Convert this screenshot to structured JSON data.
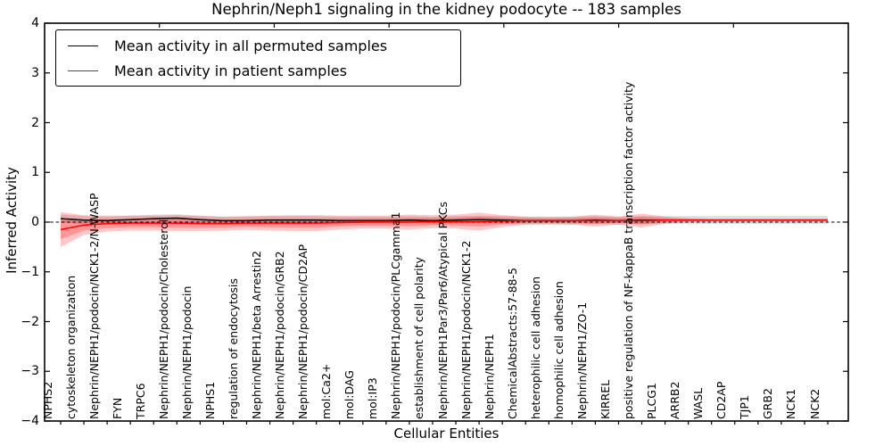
{
  "title": "Nephrin/Neph1 signaling in the kidney podocyte -- 183 samples",
  "legend": {
    "entries": [
      {
        "label": "Mean activity in all permuted samples",
        "color": "#000000"
      },
      {
        "label": "Mean activity in patient samples",
        "color": "#ff0000"
      }
    ]
  },
  "chart_data": {
    "type": "line",
    "title": "Nephrin/Neph1 signaling in the kidney podocyte -- 183 samples",
    "xlabel": "Cellular Entities",
    "ylabel": "Inferred Activity",
    "ylim": [
      -4,
      4
    ],
    "yticks": [
      4,
      3,
      2,
      1,
      0,
      -1,
      -2,
      -3,
      -4
    ],
    "grid": false,
    "legend_position": "upper left",
    "zero_line": 0,
    "categories": [
      "NPHS2",
      "cytoskeleton organization",
      "Nephrin/NEPH1/podocin/NCK1-2/N-WASP",
      "FYN",
      "TRPC6",
      "Nephrin/NEPH1/podocin/Cholesterol",
      "Nephrin/NEPH1/podocin",
      "NPHS1",
      "regulation of endocytosis",
      "Nephrin/NEPH1/beta Arrestin2",
      "Nephrin/NEPH1/podocin/GRB2",
      "Nephrin/NEPH1/podocin/CD2AP",
      "mol:Ca2+",
      "mol:DAG",
      "mol:IP3",
      "Nephrin/NEPH1/podocin/PLCgamma1",
      "establishment of cell polarity",
      "Nephrin/NEPH1Par3/Par6/Atypical PKCs",
      "Nephrin/NEPH1/podocin/NCK1-2",
      "Nephrin/NEPH1",
      "ChemicalAbstracts:57-88-5",
      "heterophilic cell adhesion",
      "homophilic cell adhesion",
      "Nephrin/NEPH1/ZO-1",
      "KIRREL",
      "positive regulation of NF-kappaB transcription factor activity",
      "PLCG1",
      "ARRB2",
      "WASL",
      "CD2AP",
      "TJP1",
      "GRB2",
      "NCK1",
      "NCK2"
    ],
    "series": [
      {
        "name": "Mean activity in all permuted samples",
        "color": "#000000",
        "band_color": "#000000",
        "band_opacity": 0.13,
        "band_halfwidth": 0.08,
        "values": [
          0.07,
          0.04,
          0.03,
          0.05,
          0.07,
          0.08,
          0.05,
          0.03,
          0.03,
          0.04,
          0.04,
          0.04,
          0.03,
          0.03,
          0.03,
          0.04,
          0.03,
          0.04,
          0.05,
          0.04,
          0.03,
          0.03,
          0.03,
          0.04,
          0.03,
          0.04,
          0.04,
          0.04,
          0.04,
          0.04,
          0.04,
          0.04,
          0.04,
          0.04
        ]
      },
      {
        "name": "Mean activity in patient samples",
        "color": "#ff0000",
        "band_color": "#ff0000",
        "band_opacity": 0.22,
        "band_halfwidth": [
          0.35,
          0.2,
          0.16,
          0.15,
          0.15,
          0.16,
          0.15,
          0.14,
          0.14,
          0.15,
          0.16,
          0.16,
          0.14,
          0.13,
          0.13,
          0.15,
          0.13,
          0.14,
          0.18,
          0.12,
          0.08,
          0.07,
          0.08,
          0.12,
          0.08,
          0.14,
          0.07,
          0.04,
          0.03,
          0.03,
          0.03,
          0.03,
          0.03,
          0.03
        ],
        "values": [
          -0.15,
          -0.06,
          -0.03,
          -0.02,
          -0.02,
          -0.02,
          -0.03,
          -0.03,
          -0.02,
          -0.02,
          -0.02,
          -0.02,
          -0.01,
          0.0,
          0.0,
          0.0,
          0.01,
          0.01,
          0.01,
          0.02,
          0.03,
          0.03,
          0.03,
          0.03,
          0.03,
          0.03,
          0.04,
          0.04,
          0.04,
          0.04,
          0.04,
          0.04,
          0.04,
          0.04
        ]
      }
    ]
  }
}
